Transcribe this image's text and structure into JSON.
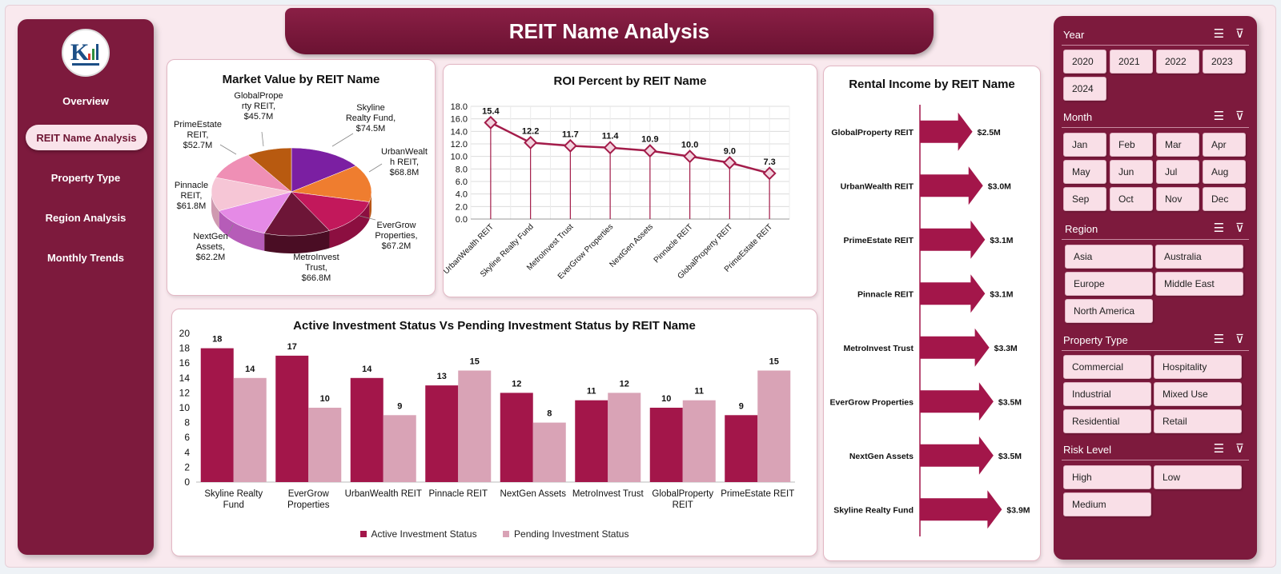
{
  "title": "REIT Name Analysis",
  "nav": [
    {
      "label": "Overview"
    },
    {
      "label": "REIT Name Analysis",
      "active": true
    },
    {
      "label": "Property Type"
    },
    {
      "label": "Region Analysis"
    },
    {
      "label": "Monthly Trends"
    }
  ],
  "filters": {
    "year": {
      "title": "Year",
      "options": [
        "2020",
        "2021",
        "2022",
        "2023",
        "2024"
      ]
    },
    "month": {
      "title": "Month",
      "options": [
        "Jan",
        "Feb",
        "Mar",
        "Apr",
        "May",
        "Jun",
        "Jul",
        "Aug",
        "Sep",
        "Oct",
        "Nov",
        "Dec"
      ]
    },
    "region": {
      "title": "Region",
      "options": [
        "Asia",
        "Australia",
        "Europe",
        "Middle East",
        "North America"
      ]
    },
    "property_type": {
      "title": "Property Type",
      "options": [
        "Commercial",
        "Hospitality",
        "Industrial",
        "Mixed Use",
        "Residential",
        "Retail"
      ]
    },
    "risk_level": {
      "title": "Risk Level",
      "options": [
        "High",
        "Low",
        "Medium"
      ]
    },
    "icons": [
      "multi-select-icon",
      "clear-filter-icon"
    ]
  },
  "colors": {
    "brand": "#7d1a3d",
    "active_series": "#a3164a",
    "pending_series": "#d9a3b6",
    "line": "#a31c4a"
  },
  "chart_data": [
    {
      "type": "pie",
      "title": "Market Value by REIT Name",
      "categories": [
        "Skyline Realty Fund",
        "UrbanWealth REIT",
        "EverGrow Properties",
        "MetroInvest Trust",
        "NextGen Assets",
        "Pinnacle REIT",
        "PrimeEstate REIT",
        "GlobalProperty REIT"
      ],
      "values": [
        74.5,
        68.8,
        67.2,
        66.8,
        62.2,
        61.8,
        52.7,
        45.7
      ],
      "data_labels": [
        "Skyline Realty Fund, $74.5M",
        "UrbanWealth REIT, $68.8M",
        "EverGrow Properties, $67.2M",
        "MetroInvest Trust, $66.8M",
        "NextGen Assets, $62.2M",
        "Pinnacle REIT, $61.8M",
        "PrimeEstate REIT, $52.7M",
        "GlobalProperty REIT, $45.7M"
      ],
      "unit": "$M"
    },
    {
      "type": "line",
      "title": "ROI Percent by REIT Name",
      "categories": [
        "UrbanWealth REIT",
        "Skyline Realty Fund",
        "MetroInvest Trust",
        "EverGrow Properties",
        "NextGen Assets",
        "Pinnacle REIT",
        "GlobalProperty REIT",
        "PrimeEstate REIT"
      ],
      "values": [
        15.4,
        12.2,
        11.7,
        11.4,
        10.9,
        10.0,
        9.0,
        7.3
      ],
      "ylim": [
        0,
        18
      ],
      "yticks": [
        "0.0",
        "2.0",
        "4.0",
        "6.0",
        "8.0",
        "10.0",
        "12.0",
        "14.0",
        "16.0",
        "18.0"
      ],
      "grid": true
    },
    {
      "type": "bar",
      "orientation": "horizontal",
      "title": "Rental Income by REIT Name",
      "categories": [
        "GlobalProperty REIT",
        "UrbanWealth REIT",
        "PrimeEstate REIT",
        "Pinnacle REIT",
        "MetroInvest Trust",
        "EverGrow Properties",
        "NextGen Assets",
        "Skyline Realty Fund"
      ],
      "values": [
        2.5,
        3.0,
        3.1,
        3.1,
        3.3,
        3.5,
        3.5,
        3.9
      ],
      "data_labels": [
        "$2.5M",
        "$3.0M",
        "$3.1M",
        "$3.1M",
        "$3.3M",
        "$3.5M",
        "$3.5M",
        "$3.9M"
      ]
    },
    {
      "type": "bar",
      "title": "Active Investment Status Vs Pending Investment Status by REIT Name",
      "categories": [
        "Skyline Realty Fund",
        "EverGrow Properties",
        "UrbanWealth REIT",
        "Pinnacle REIT",
        "NextGen Assets",
        "MetroInvest Trust",
        "GlobalProperty REIT",
        "PrimeEstate REIT"
      ],
      "series": [
        {
          "name": "Active Investment Status",
          "values": [
            18,
            17,
            14,
            13,
            12,
            11,
            10,
            9
          ]
        },
        {
          "name": "Pending Investment Status",
          "values": [
            14,
            10,
            9,
            15,
            8,
            12,
            11,
            15
          ]
        }
      ],
      "ylim": [
        0,
        20
      ],
      "yticks": [
        "0",
        "2",
        "4",
        "6",
        "8",
        "10",
        "12",
        "14",
        "16",
        "18",
        "20"
      ],
      "legend": "bottom"
    }
  ]
}
